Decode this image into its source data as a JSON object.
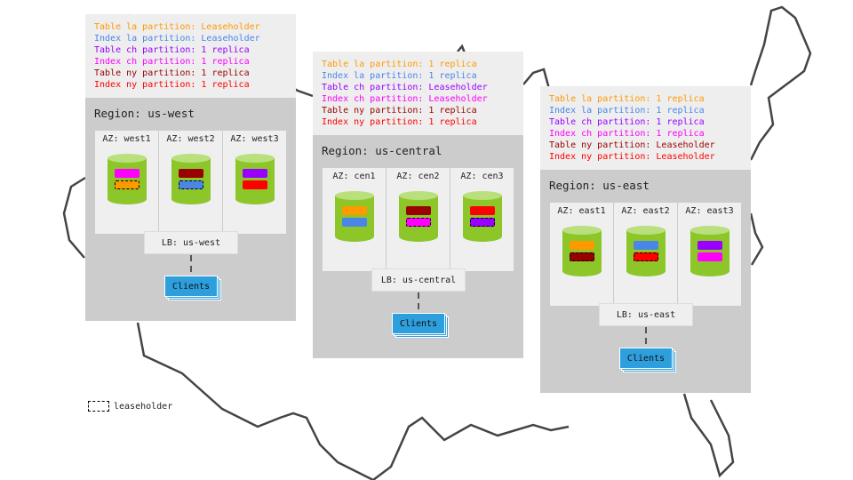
{
  "colors": {
    "la_table": "#ff9900",
    "la_index": "#4a86e8",
    "ch_table": "#9900ff",
    "ch_index": "#ff00ff",
    "ny_table": "#990000",
    "ny_index": "#ff0000",
    "node": "#8cc629",
    "clients": "#2e9fdd"
  },
  "regions": [
    {
      "title": "Region: us-west",
      "lb": "LB: us-west",
      "clients": "Clients",
      "legend": [
        {
          "text": "Table la partition: Leaseholder",
          "color": "#ff9900"
        },
        {
          "text": "Index la partition: Leaseholder",
          "color": "#4a86e8"
        },
        {
          "text": "Table ch partition: 1 replica",
          "color": "#9900ff"
        },
        {
          "text": "Index ch partition: 1 replica",
          "color": "#ff00ff"
        },
        {
          "text": "Table ny partition: 1 replica",
          "color": "#990000"
        },
        {
          "text": "Index ny partition: 1 replica",
          "color": "#ff0000"
        }
      ],
      "azs": [
        {
          "label": "AZ: west1",
          "replicas": [
            {
              "color": "#ff00ff",
              "leaseholder": false
            },
            {
              "color": "#ff9900",
              "leaseholder": true
            }
          ]
        },
        {
          "label": "AZ: west2",
          "replicas": [
            {
              "color": "#990000",
              "leaseholder": false
            },
            {
              "color": "#4a86e8",
              "leaseholder": true
            }
          ]
        },
        {
          "label": "AZ: west3",
          "replicas": [
            {
              "color": "#9900ff",
              "leaseholder": false
            },
            {
              "color": "#ff0000",
              "leaseholder": false
            }
          ]
        }
      ]
    },
    {
      "title": "Region: us-central",
      "lb": "LB: us-central",
      "clients": "Clients",
      "legend": [
        {
          "text": "Table la partition: 1 replica",
          "color": "#ff9900"
        },
        {
          "text": "Index la partition: 1 replica",
          "color": "#4a86e8"
        },
        {
          "text": "Table ch partition: Leaseholder",
          "color": "#9900ff"
        },
        {
          "text": "Index ch partition: Leaseholder",
          "color": "#ff00ff"
        },
        {
          "text": "Table ny partition: 1 replica",
          "color": "#990000"
        },
        {
          "text": "Index ny partition: 1 replica",
          "color": "#ff0000"
        }
      ],
      "azs": [
        {
          "label": "AZ: cen1",
          "replicas": [
            {
              "color": "#ff9900",
              "leaseholder": false
            },
            {
              "color": "#4a86e8",
              "leaseholder": false
            }
          ]
        },
        {
          "label": "AZ: cen2",
          "replicas": [
            {
              "color": "#990000",
              "leaseholder": false
            },
            {
              "color": "#ff00ff",
              "leaseholder": true
            }
          ]
        },
        {
          "label": "AZ: cen3",
          "replicas": [
            {
              "color": "#ff0000",
              "leaseholder": false
            },
            {
              "color": "#9900ff",
              "leaseholder": true
            }
          ]
        }
      ]
    },
    {
      "title": "Region: us-east",
      "lb": "LB: us-east",
      "clients": "Clients",
      "legend": [
        {
          "text": "Table la partition: 1 replica",
          "color": "#ff9900"
        },
        {
          "text": "Index la partition: 1 replica",
          "color": "#4a86e8"
        },
        {
          "text": "Table ch partition: 1 replica",
          "color": "#9900ff"
        },
        {
          "text": "Index ch partition: 1 replica",
          "color": "#ff00ff"
        },
        {
          "text": "Table ny partition: Leaseholder",
          "color": "#990000"
        },
        {
          "text": "Index ny partition: Leaseholder",
          "color": "#ff0000"
        }
      ],
      "azs": [
        {
          "label": "AZ: east1",
          "replicas": [
            {
              "color": "#ff9900",
              "leaseholder": false
            },
            {
              "color": "#990000",
              "leaseholder": true
            }
          ]
        },
        {
          "label": "AZ: east2",
          "replicas": [
            {
              "color": "#4a86e8",
              "leaseholder": false
            },
            {
              "color": "#ff0000",
              "leaseholder": true
            }
          ]
        },
        {
          "label": "AZ: east3",
          "replicas": [
            {
              "color": "#9900ff",
              "leaseholder": false
            },
            {
              "color": "#ff00ff",
              "leaseholder": false
            }
          ]
        }
      ]
    }
  ],
  "key": {
    "label": "leaseholder"
  }
}
